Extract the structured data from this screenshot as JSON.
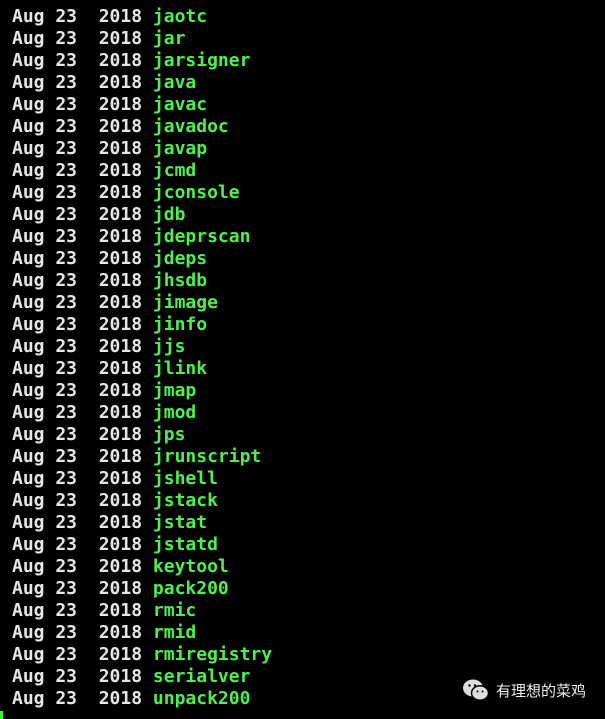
{
  "terminal": {
    "colors": {
      "date": "#e6e6e6",
      "executable": "#4fef4f",
      "background": "#000000"
    },
    "rows": [
      {
        "date": "Aug 23  2018",
        "name": "jaotc"
      },
      {
        "date": "Aug 23  2018",
        "name": "jar"
      },
      {
        "date": "Aug 23  2018",
        "name": "jarsigner"
      },
      {
        "date": "Aug 23  2018",
        "name": "java"
      },
      {
        "date": "Aug 23  2018",
        "name": "javac"
      },
      {
        "date": "Aug 23  2018",
        "name": "javadoc"
      },
      {
        "date": "Aug 23  2018",
        "name": "javap"
      },
      {
        "date": "Aug 23  2018",
        "name": "jcmd"
      },
      {
        "date": "Aug 23  2018",
        "name": "jconsole"
      },
      {
        "date": "Aug 23  2018",
        "name": "jdb"
      },
      {
        "date": "Aug 23  2018",
        "name": "jdeprscan"
      },
      {
        "date": "Aug 23  2018",
        "name": "jdeps"
      },
      {
        "date": "Aug 23  2018",
        "name": "jhsdb"
      },
      {
        "date": "Aug 23  2018",
        "name": "jimage"
      },
      {
        "date": "Aug 23  2018",
        "name": "jinfo"
      },
      {
        "date": "Aug 23  2018",
        "name": "jjs"
      },
      {
        "date": "Aug 23  2018",
        "name": "jlink"
      },
      {
        "date": "Aug 23  2018",
        "name": "jmap"
      },
      {
        "date": "Aug 23  2018",
        "name": "jmod"
      },
      {
        "date": "Aug 23  2018",
        "name": "jps"
      },
      {
        "date": "Aug 23  2018",
        "name": "jrunscript"
      },
      {
        "date": "Aug 23  2018",
        "name": "jshell"
      },
      {
        "date": "Aug 23  2018",
        "name": "jstack"
      },
      {
        "date": "Aug 23  2018",
        "name": "jstat"
      },
      {
        "date": "Aug 23  2018",
        "name": "jstatd"
      },
      {
        "date": "Aug 23  2018",
        "name": "keytool"
      },
      {
        "date": "Aug 23  2018",
        "name": "pack200"
      },
      {
        "date": "Aug 23  2018",
        "name": "rmic"
      },
      {
        "date": "Aug 23  2018",
        "name": "rmid"
      },
      {
        "date": "Aug 23  2018",
        "name": "rmiregistry"
      },
      {
        "date": "Aug 23  2018",
        "name": "serialver"
      },
      {
        "date": "Aug 23  2018",
        "name": "unpack200"
      }
    ]
  },
  "watermark": {
    "icon": "wechat-icon",
    "text": "有理想的菜鸡"
  }
}
